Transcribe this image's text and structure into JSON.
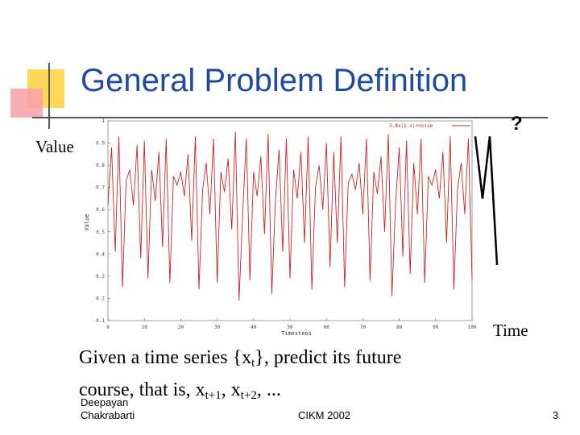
{
  "slide": {
    "title": "General Problem Definition",
    "value_label": "Value",
    "time_label": "Time",
    "question_mark": "?",
    "body_line1_prefix": "Given a time series {x",
    "body_line1_sub": "t",
    "body_line1_suffix": "}, predict its future",
    "body_line2_prefix": "course, that is, x",
    "body_line2_sub1": "t+1",
    "body_line2_mid": ", x",
    "body_line2_sub2": "t+2",
    "body_line2_suffix": ", ...",
    "footer_author_line1": "Deepayan",
    "footer_author_line2": "Chakrabarti",
    "footer_conference": "CIKM 2002",
    "page_number": "3"
  },
  "colors": {
    "title": "#1f4aa0",
    "series": "#cc2222",
    "accent_yellow": "#ffd85a",
    "accent_pink": "#f7a0a8"
  },
  "chart_data": {
    "type": "line",
    "xlabel": "Timesteps",
    "ylabel": "Value",
    "legend": "3.8x(1-x)+noise",
    "legend_position": "top-right",
    "xlim": [
      0,
      100
    ],
    "ylim": [
      0.1,
      1
    ],
    "x_ticks": [
      "0",
      "10",
      "20",
      "30",
      "40",
      "50",
      "60",
      "70",
      "80",
      "90",
      "100"
    ],
    "y_ticks": [
      "0.1",
      "0.2",
      "0.3",
      "0.4",
      "0.5",
      "0.6",
      "0.7",
      "0.8",
      "0.9",
      "1"
    ],
    "series": [
      {
        "name": "3.8x(1-x)+noise",
        "values": [
          0.62,
          0.88,
          0.41,
          0.93,
          0.25,
          0.73,
          0.78,
          0.62,
          0.89,
          0.38,
          0.91,
          0.29,
          0.78,
          0.64,
          0.86,
          0.43,
          0.92,
          0.27,
          0.75,
          0.71,
          0.77,
          0.66,
          0.85,
          0.46,
          0.93,
          0.24,
          0.69,
          0.81,
          0.58,
          0.92,
          0.27,
          0.77,
          0.68,
          0.83,
          0.51,
          0.95,
          0.19,
          0.58,
          0.92,
          0.28,
          0.77,
          0.66,
          0.84,
          0.49,
          0.94,
          0.22,
          0.64,
          0.87,
          0.41,
          0.92,
          0.29,
          0.78,
          0.65,
          0.86,
          0.45,
          0.93,
          0.24,
          0.7,
          0.8,
          0.6,
          0.9,
          0.34,
          0.86,
          0.45,
          0.93,
          0.25,
          0.72,
          0.76,
          0.69,
          0.81,
          0.58,
          0.92,
          0.28,
          0.77,
          0.67,
          0.84,
          0.5,
          0.94,
          0.21,
          0.63,
          0.88,
          0.39,
          0.91,
          0.31,
          0.81,
          0.58,
          0.92,
          0.27,
          0.75,
          0.71,
          0.78,
          0.65,
          0.86,
          0.45,
          0.93,
          0.24,
          0.69,
          0.81,
          0.58,
          0.92,
          0.28
        ]
      }
    ]
  },
  "extrapolation": {
    "values": [
      0.93,
      0.65,
      0.93,
      0.35
    ]
  }
}
